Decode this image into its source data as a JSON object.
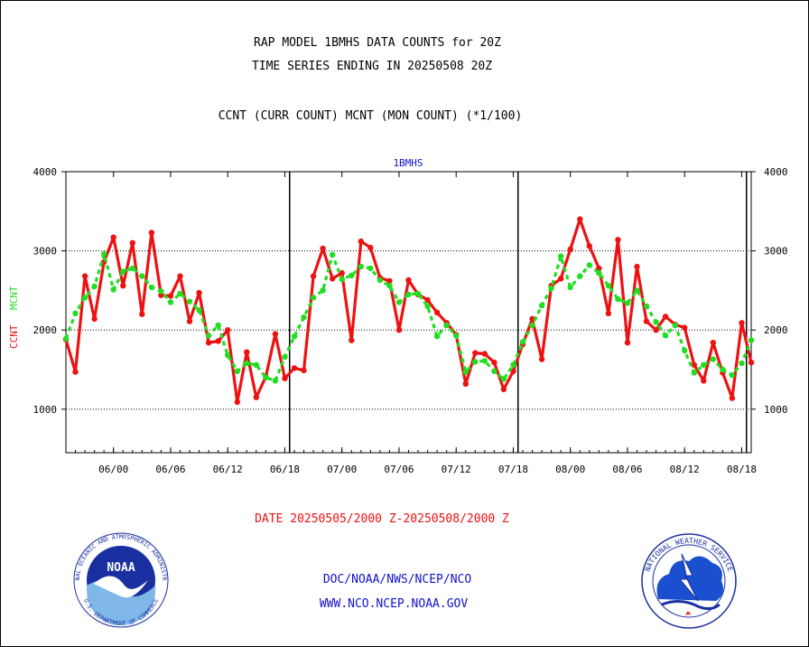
{
  "header": {
    "title_line1": "RAP MODEL 1BMHS DATA COUNTS for 20Z",
    "title_line2": "TIME SERIES ENDING IN 20250508 20Z",
    "subtitle": "CCNT (CURR COUNT) MCNT (MON COUNT) (*1/100)"
  },
  "footer": {
    "date_range": "DATE 20250505/2000 Z-20250508/2000 Z",
    "link1": "DOC/NOAA/NWS/NCEP/NCO",
    "link2": "WWW.NCO.NCEP.NOAA.GOV"
  },
  "logos": {
    "noaa_text": "NOAA",
    "noaa_ring": "NATIONAL OCEANIC AND ATMOSPHERIC ADMINISTRATION",
    "noaa_ring_bottom": "U.S. DEPARTMENT OF COMMERCE",
    "nws_ring": "NATIONAL WEATHER SERVICE"
  },
  "colors": {
    "ccnt": "#ee1111",
    "mcnt": "#22dd22",
    "footer_red": "#ee1111",
    "footer_blue": "#1111cc",
    "station_label": "#1111cc"
  },
  "chart_data": {
    "type": "line",
    "plot_label": "1BMHS",
    "ylabel_series": [
      "CCNT",
      "MCNT"
    ],
    "ylim": [
      450,
      4000
    ],
    "yticks": [
      1000,
      2000,
      3000,
      4000
    ],
    "gridlines_y": [
      1000,
      2000,
      3000
    ],
    "x_tick_labels": [
      "06/00",
      "06/06",
      "06/12",
      "06/18",
      "07/00",
      "07/06",
      "07/12",
      "07/18",
      "08/00",
      "08/06",
      "08/12",
      "08/18"
    ],
    "day_separators_after_index": [
      23,
      47,
      71
    ],
    "series": [
      {
        "name": "CCNT",
        "values": [
          1880,
          1470,
          2680,
          2140,
          2860,
          3170,
          2560,
          3100,
          2200,
          3230,
          2440,
          2430,
          2680,
          2110,
          2470,
          1840,
          1860,
          2000,
          1090,
          1720,
          1150,
          1410,
          1950,
          1390,
          1520,
          1490,
          2680,
          3030,
          2650,
          2720,
          1870,
          3120,
          3040,
          2660,
          2620,
          2000,
          2630,
          2450,
          2380,
          2220,
          2090,
          1940,
          1320,
          1710,
          1700,
          1590,
          1250,
          1480,
          1820,
          2140,
          1630,
          2560,
          2650,
          3020,
          3400,
          3060,
          2780,
          2210,
          3140,
          1840,
          2800,
          2110,
          2000,
          2170,
          2070,
          2030,
          1560,
          1360,
          1840,
          1460,
          1140,
          2090,
          1590
        ]
      },
      {
        "name": "MCNT",
        "values": [
          1890,
          2210,
          2410,
          2550,
          2960,
          2510,
          2740,
          2780,
          2680,
          2540,
          2490,
          2350,
          2460,
          2360,
          2250,
          1930,
          2060,
          1680,
          1480,
          1580,
          1560,
          1400,
          1360,
          1660,
          1920,
          2160,
          2410,
          2500,
          2950,
          2640,
          2690,
          2800,
          2780,
          2630,
          2560,
          2350,
          2450,
          2460,
          2300,
          1920,
          2060,
          1930,
          1470,
          1600,
          1610,
          1480,
          1380,
          1560,
          1850,
          2060,
          2310,
          2530,
          2930,
          2540,
          2680,
          2820,
          2720,
          2560,
          2390,
          2340,
          2500,
          2300,
          2100,
          1930,
          2060,
          1740,
          1460,
          1560,
          1630,
          1500,
          1430,
          1580,
          1870
        ]
      }
    ],
    "right_axis_ticks": [
      1000,
      2000,
      3000,
      4000
    ],
    "grid": "horizontal-dotted"
  }
}
